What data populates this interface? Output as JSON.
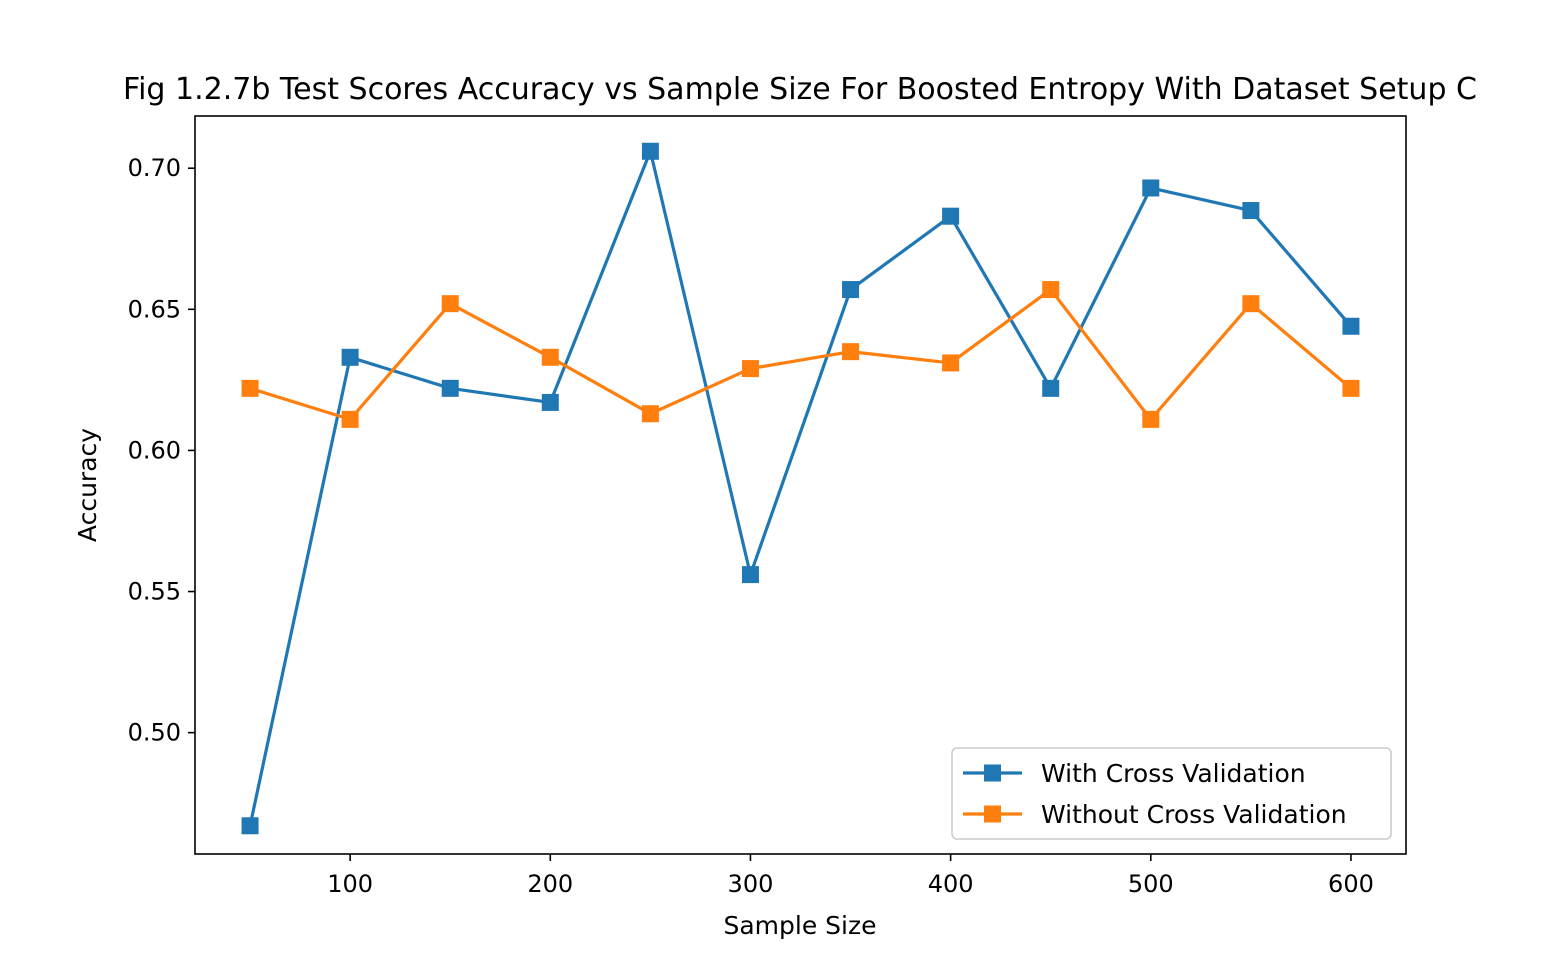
{
  "chart_data": {
    "type": "line",
    "title": "Fig 1.2.7b Test Scores Accuracy vs Sample Size For Boosted Entropy With Dataset Setup C",
    "xlabel": "Sample Size",
    "ylabel": "Accuracy",
    "x": [
      50,
      100,
      150,
      200,
      250,
      300,
      350,
      400,
      450,
      500,
      550,
      600
    ],
    "xlim": [
      22.5,
      627.5
    ],
    "ylim": [
      0.457,
      0.7185
    ],
    "xticks": [
      100,
      200,
      300,
      400,
      500,
      600
    ],
    "xtick_labels": [
      "100",
      "200",
      "300",
      "400",
      "500",
      "600"
    ],
    "yticks": [
      0.5,
      0.55,
      0.6,
      0.65,
      0.7
    ],
    "ytick_labels": [
      "0.50",
      "0.55",
      "0.60",
      "0.65",
      "0.70"
    ],
    "marker": "square",
    "grid": false,
    "legend_position": "lower-right",
    "series": [
      {
        "name": "With Cross Validation",
        "color": "#1f77b4",
        "values": [
          0.467,
          0.633,
          0.622,
          0.617,
          0.706,
          0.556,
          0.657,
          0.683,
          0.622,
          0.693,
          0.685,
          0.644
        ]
      },
      {
        "name": "Without Cross Validation",
        "color": "#ff7f0e",
        "values": [
          0.622,
          0.611,
          0.652,
          0.633,
          0.613,
          0.629,
          0.635,
          0.631,
          0.657,
          0.611,
          0.652,
          0.622
        ]
      }
    ]
  }
}
